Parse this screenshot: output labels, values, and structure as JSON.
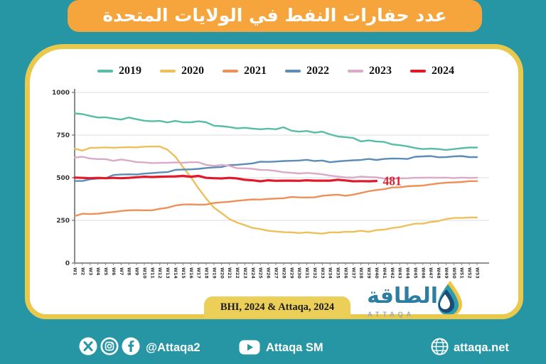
{
  "title": "عدد حفارات النفط في الولايات المتحدة",
  "source": "BHI, 2024 & Attaqa, 2024",
  "logo": {
    "arabic": "الطاقة",
    "latin": "ATTAQA"
  },
  "footer": {
    "handle": "@Attaqa2",
    "youtube_label": "Attaqa SM",
    "website": "attaqa.net"
  },
  "colors": {
    "background": "#2796a4",
    "banner": "#f5a53b",
    "card_border": "#e9c84e",
    "source_chip": "#eccf58",
    "annotation": "#d8222e",
    "logo_text": "#2e7da2",
    "logo_sub": "#97a5ae",
    "axis": "#6f6f6f",
    "grid": "#dcdcdc",
    "tick_label": "#333333"
  },
  "chart_data": {
    "type": "line",
    "title": "عدد حفارات النفط في الولايات المتحدة",
    "xlabel": "",
    "ylabel": "",
    "ylim": [
      0,
      1000
    ],
    "yticks": [
      0,
      250,
      500,
      750,
      1000
    ],
    "grid": true,
    "legend_position": "top",
    "x_labels": [
      "W1",
      "W2",
      "W3",
      "W4",
      "W5",
      "W6",
      "W7",
      "W8",
      "W9",
      "W10",
      "W11",
      "W12",
      "W13",
      "W14",
      "W15",
      "W16",
      "W17",
      "W18",
      "W19",
      "W20",
      "W21",
      "W22",
      "W23",
      "W24",
      "W25",
      "W26",
      "W27",
      "W28",
      "W29",
      "W30",
      "W31",
      "W32",
      "W33",
      "W34",
      "W35",
      "W36",
      "W37",
      "W38",
      "W39",
      "W40",
      "W41",
      "W42",
      "W43",
      "W44",
      "W45",
      "W46",
      "W47",
      "W48",
      "W49",
      "W50",
      "W51",
      "W52",
      "W53"
    ],
    "series": [
      {
        "name": "2019",
        "color": "#57bda7",
        "values": [
          877,
          873,
          862,
          853,
          854,
          847,
          841,
          853,
          843,
          834,
          831,
          833,
          824,
          833,
          825,
          825,
          831,
          825,
          805,
          802,
          797,
          789,
          793,
          788,
          784,
          788,
          784,
          796,
          776,
          770,
          774,
          764,
          770,
          754,
          742,
          738,
          733,
          713,
          719,
          712,
          710,
          696,
          691,
          684,
          674,
          668,
          671,
          668,
          663,
          668,
          673,
          677,
          677
        ]
      },
      {
        "name": "2020",
        "color": "#edc05b",
        "values": [
          670,
          659,
          675,
          676,
          678,
          676,
          678,
          679,
          678,
          682,
          683,
          683,
          664,
          624,
          562,
          504,
          438,
          378,
          325,
          292,
          258,
          237,
          222,
          206,
          199,
          189,
          185,
          181,
          180,
          176,
          180,
          176,
          172,
          180,
          179,
          183,
          183,
          189,
          183,
          193,
          196,
          205,
          211,
          221,
          231,
          231,
          241,
          246,
          258,
          264,
          264,
          267,
          267
        ]
      },
      {
        "name": "2021",
        "color": "#ee9058",
        "values": [
          275,
          289,
          287,
          289,
          295,
          299,
          305,
          309,
          310,
          309,
          309,
          318,
          324,
          337,
          343,
          344,
          342,
          343,
          352,
          356,
          359,
          365,
          369,
          373,
          372,
          376,
          378,
          380,
          387,
          385,
          384,
          385,
          394,
          398,
          401,
          394,
          401,
          411,
          421,
          428,
          433,
          443,
          444,
          450,
          452,
          454,
          461,
          467,
          471,
          473,
          475,
          480,
          480
        ]
      },
      {
        "name": "2022",
        "color": "#5d8cb6",
        "values": [
          481,
          481,
          491,
          495,
          497,
          516,
          519,
          520,
          519,
          524,
          527,
          531,
          533,
          546,
          548,
          549,
          552,
          557,
          561,
          563,
          574,
          576,
          580,
          584,
          594,
          593,
          595,
          598,
          599,
          601,
          605,
          598,
          601,
          591,
          596,
          599,
          602,
          604,
          610,
          604,
          610,
          613,
          612,
          610,
          623,
          625,
          627,
          620,
          621,
          625,
          627,
          621,
          621
        ]
      },
      {
        "name": "2023",
        "color": "#d9abc8",
        "values": [
          618,
          623,
          613,
          609,
          609,
          599,
          607,
          600,
          592,
          590,
          586,
          587,
          588,
          590,
          588,
          591,
          591,
          575,
          570,
          575,
          570,
          556,
          555,
          552,
          546,
          545,
          540,
          532,
          529,
          525,
          528,
          525,
          520,
          512,
          507,
          502,
          501,
          507,
          504,
          502,
          496,
          494,
          496,
          497,
          500,
          500,
          501,
          500,
          501,
          498,
          501,
          499,
          500
        ]
      },
      {
        "name": "2024",
        "color": "#e01a2b",
        "end_label": "481",
        "values": [
          501,
          499,
          497,
          499,
          497,
          499,
          497,
          499,
          503,
          506,
          504,
          506,
          507,
          508,
          511,
          506,
          511,
          499,
          497,
          496,
          499,
          496,
          488,
          485,
          479,
          485,
          482,
          483,
          483,
          482,
          485,
          483,
          483,
          483,
          488,
          484,
          479,
          480,
          479,
          481
        ]
      }
    ]
  }
}
